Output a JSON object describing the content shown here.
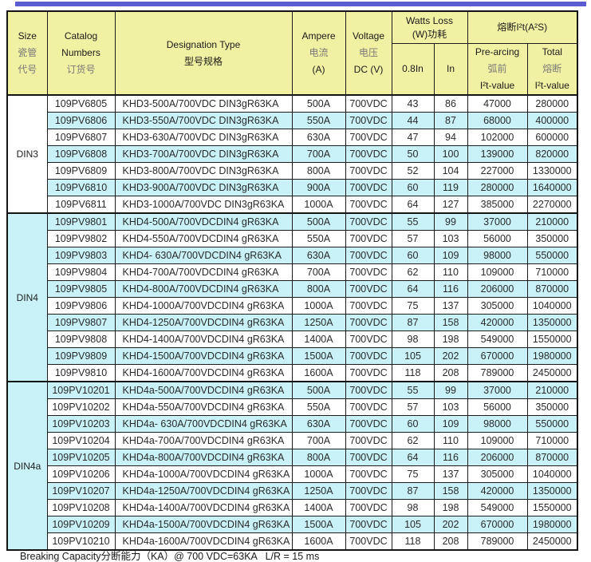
{
  "colors": {
    "accent_bar": "#5b5bd2",
    "header_bg": "#f1f1a3",
    "row_alt_bg": "#c8f2f8",
    "border": "#141414"
  },
  "header": {
    "size": {
      "en": "Size",
      "zh": "瓷管\n代号"
    },
    "catalog": {
      "en": "Catalog\nNumbers",
      "zh": "订货号"
    },
    "designation": {
      "en": "Designation Type",
      "zh": "型号规格"
    },
    "ampere": {
      "en": "Ampere",
      "zh": "电流",
      "en2": "(A)"
    },
    "voltage": {
      "en": "Voltage",
      "zh": "电压",
      "en2": "DC (V)"
    },
    "watts_group": {
      "en": "Watts Loss\n(W)功耗"
    },
    "melt_group": {
      "en": "熔断I²t(A²S)"
    },
    "watts_08in": {
      "en": "0.8In"
    },
    "watts_in": {
      "en": "In"
    },
    "prearcing": {
      "en": "Pre-arcing",
      "zh": "弧前",
      "en2": "I²t-value"
    },
    "total": {
      "en": "Total",
      "zh": "熔断",
      "en2": "I²t-value"
    }
  },
  "groups": [
    {
      "size": "DIN3",
      "rows": [
        {
          "catalog": "109PV6805",
          "designation": "KHD3-500A/700VDC DIN3gR63KA",
          "ampere": "500A",
          "voltage": "700VDC",
          "watts_08in": "43",
          "watts_in": "86",
          "prearcing_i2t": "47000",
          "total_i2t": "280000"
        },
        {
          "catalog": "109PV6806",
          "designation": "KHD3-550A/700VDC DIN3gR63KA",
          "ampere": "550A",
          "voltage": "700VDC",
          "watts_08in": "44",
          "watts_in": "87",
          "prearcing_i2t": "68000",
          "total_i2t": "400000"
        },
        {
          "catalog": "109PV6807",
          "designation": "KHD3-630A/700VDC DIN3gR63KA",
          "ampere": "630A",
          "voltage": "700VDC",
          "watts_08in": "47",
          "watts_in": "94",
          "prearcing_i2t": "102000",
          "total_i2t": "600000"
        },
        {
          "catalog": "109PV6808",
          "designation": "KHD3-700A/700VDC DIN3gR63KA",
          "ampere": "700A",
          "voltage": "700VDC",
          "watts_08in": "50",
          "watts_in": "100",
          "prearcing_i2t": "139000",
          "total_i2t": "820000"
        },
        {
          "catalog": "109PV6809",
          "designation": "KHD3-800A/700VDC DIN3gR63KA",
          "ampere": "800A",
          "voltage": "700VDC",
          "watts_08in": "52",
          "watts_in": "104",
          "prearcing_i2t": "227000",
          "total_i2t": "1330000"
        },
        {
          "catalog": "109PV6810",
          "designation": "KHD3-900A/700VDC DIN3gR63KA",
          "ampere": "900A",
          "voltage": "700VDC",
          "watts_08in": "60",
          "watts_in": "119",
          "prearcing_i2t": "280000",
          "total_i2t": "1640000"
        },
        {
          "catalog": "109PV6811",
          "designation": "KHD3-1000A/700VDC DIN3gR63KA",
          "ampere": "1000A",
          "voltage": "700VDC",
          "watts_08in": "64",
          "watts_in": "127",
          "prearcing_i2t": "385000",
          "total_i2t": "2270000"
        }
      ]
    },
    {
      "size": "DIN4",
      "rows": [
        {
          "catalog": "109PV9801",
          "designation": "KHD4-500A/700VDCDIN4 gR63KA",
          "ampere": "500A",
          "voltage": "700VDC",
          "watts_08in": "55",
          "watts_in": "99",
          "prearcing_i2t": "37000",
          "total_i2t": "210000"
        },
        {
          "catalog": "109PV9802",
          "designation": "KHD4-550A/700VDCDIN4 gR63KA",
          "ampere": "550A",
          "voltage": "700VDC",
          "watts_08in": "57",
          "watts_in": "103",
          "prearcing_i2t": "56000",
          "total_i2t": "350000"
        },
        {
          "catalog": "109PV9803",
          "designation": "KHD4- 630A/700VDCDIN4 gR63KA",
          "ampere": "630A",
          "voltage": "700VDC",
          "watts_08in": "60",
          "watts_in": "109",
          "prearcing_i2t": "98000",
          "total_i2t": "550000"
        },
        {
          "catalog": "109PV9804",
          "designation": "KHD4-700A/700VDCDIN4 gR63KA",
          "ampere": "700A",
          "voltage": "700VDC",
          "watts_08in": "62",
          "watts_in": "110",
          "prearcing_i2t": "109000",
          "total_i2t": "710000"
        },
        {
          "catalog": "109PV9805",
          "designation": "KHD4-800A/700VDCDIN4 gR63KA",
          "ampere": "800A",
          "voltage": "700VDC",
          "watts_08in": "64",
          "watts_in": "116",
          "prearcing_i2t": "206000",
          "total_i2t": "870000"
        },
        {
          "catalog": "109PV9806",
          "designation": "KHD4-1000A/700VDCDIN4 gR63KA",
          "ampere": "1000A",
          "voltage": "700VDC",
          "watts_08in": "75",
          "watts_in": "137",
          "prearcing_i2t": "305000",
          "total_i2t": "1040000"
        },
        {
          "catalog": "109PV9807",
          "designation": "KHD4-1250A/700VDCDIN4 gR63KA",
          "ampere": "1250A",
          "voltage": "700VDC",
          "watts_08in": "87",
          "watts_in": "158",
          "prearcing_i2t": "420000",
          "total_i2t": "1350000"
        },
        {
          "catalog": "109PV9808",
          "designation": "KHD4-1400A/700VDCDIN4 gR63KA",
          "ampere": "1400A",
          "voltage": "700VDC",
          "watts_08in": "98",
          "watts_in": "198",
          "prearcing_i2t": "549000",
          "total_i2t": "1550000"
        },
        {
          "catalog": "109PV9809",
          "designation": "KHD4-1500A/700VDCDIN4 gR63KA",
          "ampere": "1500A",
          "voltage": "700VDC",
          "watts_08in": "105",
          "watts_in": "202",
          "prearcing_i2t": "670000",
          "total_i2t": "1980000"
        },
        {
          "catalog": "109PV9810",
          "designation": "KHD4-1600A/700VDCDIN4 gR63KA",
          "ampere": "1600A",
          "voltage": "700VDC",
          "watts_08in": "118",
          "watts_in": "208",
          "prearcing_i2t": "789000",
          "total_i2t": "2450000"
        }
      ]
    },
    {
      "size": "DIN4a",
      "rows": [
        {
          "catalog": "109PV10201",
          "designation": "KHD4a-500A/700VDCDIN4 gR63KA",
          "ampere": "500A",
          "voltage": "700VDC",
          "watts_08in": "55",
          "watts_in": "99",
          "prearcing_i2t": "37000",
          "total_i2t": "210000"
        },
        {
          "catalog": "109PV10202",
          "designation": "KHD4a-550A/700VDCDIN4 gR63KA",
          "ampere": "550A",
          "voltage": "700VDC",
          "watts_08in": "57",
          "watts_in": "103",
          "prearcing_i2t": "56000",
          "total_i2t": "350000"
        },
        {
          "catalog": "109PV10203",
          "designation": "KHD4a- 630A/700VDCDIN4 gR63KA",
          "ampere": "630A",
          "voltage": "700VDC",
          "watts_08in": "60",
          "watts_in": "109",
          "prearcing_i2t": "98000",
          "total_i2t": "550000"
        },
        {
          "catalog": "109PV10204",
          "designation": "KHD4a-700A/700VDCDIN4 gR63KA",
          "ampere": "700A",
          "voltage": "700VDC",
          "watts_08in": "62",
          "watts_in": "110",
          "prearcing_i2t": "109000",
          "total_i2t": "710000"
        },
        {
          "catalog": "109PV10205",
          "designation": "KHD4a-800A/700VDCDIN4 gR63KA",
          "ampere": "800A",
          "voltage": "700VDC",
          "watts_08in": "64",
          "watts_in": "116",
          "prearcing_i2t": "206000",
          "total_i2t": "870000"
        },
        {
          "catalog": "109PV10206",
          "designation": "KHD4a-1000A/700VDCDIN4 gR63KA",
          "ampere": "1000A",
          "voltage": "700VDC",
          "watts_08in": "75",
          "watts_in": "137",
          "prearcing_i2t": "305000",
          "total_i2t": "1040000"
        },
        {
          "catalog": "109PV10207",
          "designation": "KHD4a-1250A/700VDCDIN4 gR63KA",
          "ampere": "1250A",
          "voltage": "700VDC",
          "watts_08in": "87",
          "watts_in": "158",
          "prearcing_i2t": "420000",
          "total_i2t": "1350000"
        },
        {
          "catalog": "109PV10208",
          "designation": "KHD4a-1400A/700VDCDIN4 gR63KA",
          "ampere": "1400A",
          "voltage": "700VDC",
          "watts_08in": "98",
          "watts_in": "198",
          "prearcing_i2t": "549000",
          "total_i2t": "1550000"
        },
        {
          "catalog": "109PV10209",
          "designation": "KHD4a-1500A/700VDCDIN4 gR63KA",
          "ampere": "1500A",
          "voltage": "700VDC",
          "watts_08in": "105",
          "watts_in": "202",
          "prearcing_i2t": "670000",
          "total_i2t": "1980000"
        },
        {
          "catalog": "109PV10210",
          "designation": "KHD4a-1600A/700VDCDIN4 gR63KA",
          "ampere": "1600A",
          "voltage": "700VDC",
          "watts_08in": "118",
          "watts_in": "208",
          "prearcing_i2t": "789000",
          "total_i2t": "2450000"
        }
      ]
    }
  ],
  "footer": {
    "note": "Breaking Capacity分断能力（KA）@ 700 VDC=63KA   L/R = 15 ms"
  }
}
